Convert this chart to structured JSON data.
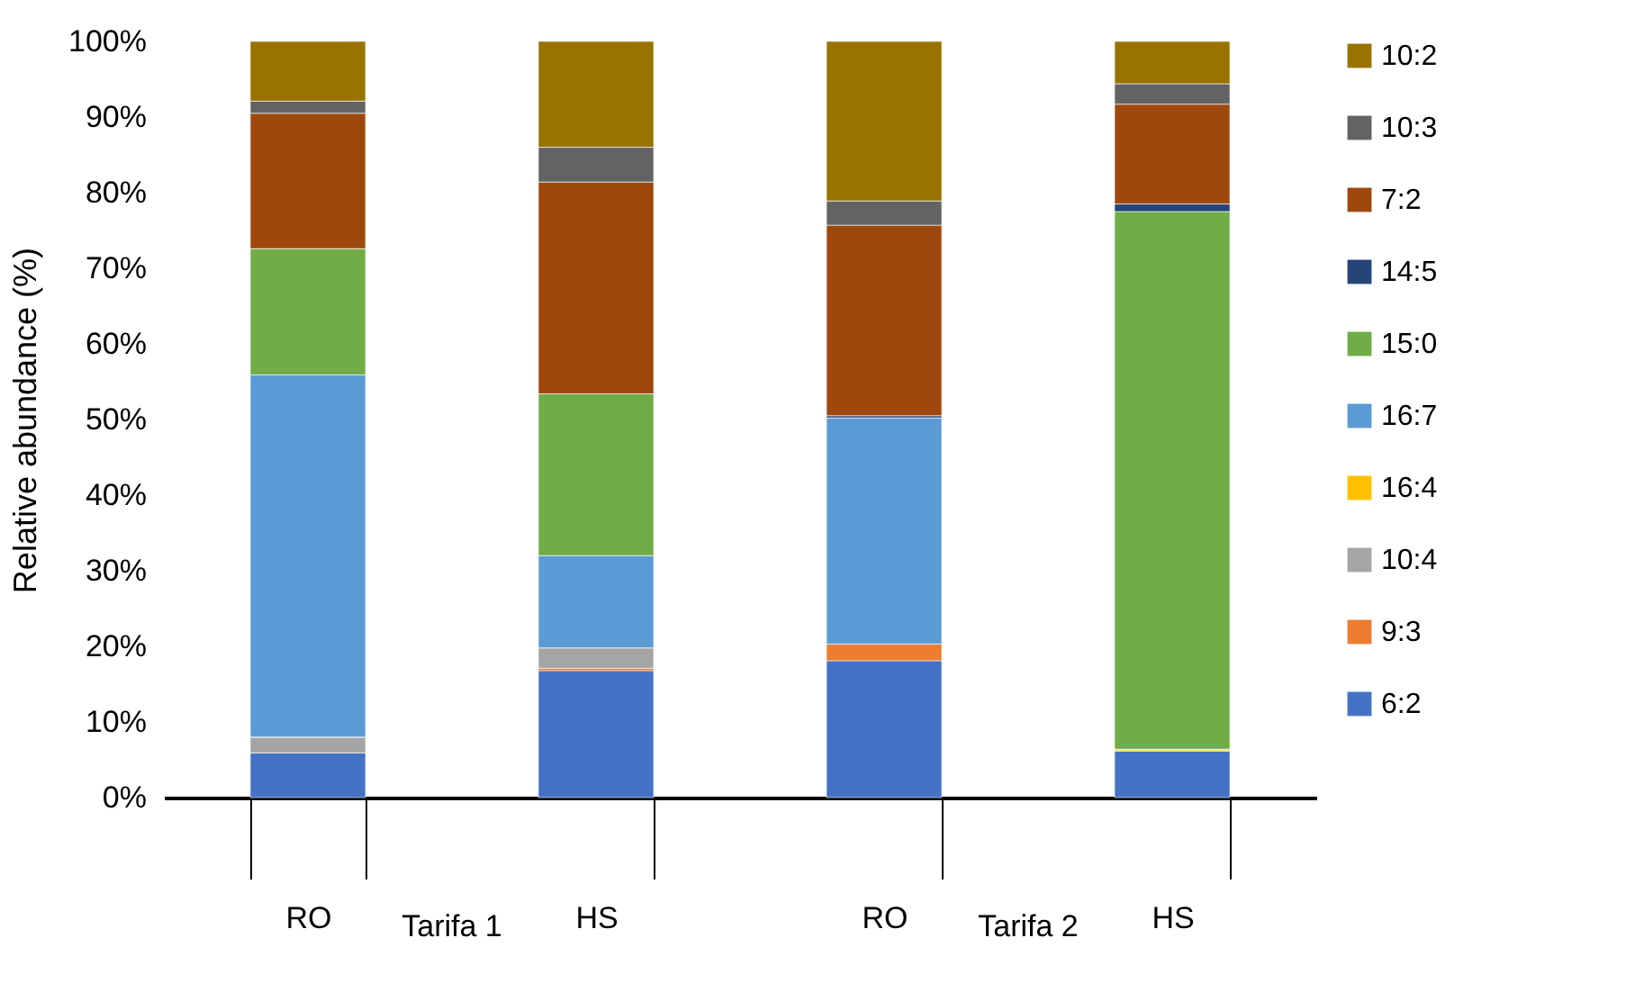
{
  "chart_data": {
    "type": "bar",
    "stacked": true,
    "ylabel": "Relative abundance (%)",
    "categories": [
      "RO",
      "HS",
      "RO",
      "HS"
    ],
    "annotations": [
      "Tarifa 1",
      "Tarifa 2"
    ],
    "series": [
      {
        "name": "6:2",
        "color": "#4472c4",
        "values": [
          5.9,
          16.8,
          18.1,
          6.2
        ]
      },
      {
        "name": "9:3",
        "color": "#ed7d31",
        "values": [
          0,
          0.3,
          2.2,
          0
        ]
      },
      {
        "name": "10:4",
        "color": "#a5a5a5",
        "values": [
          2.1,
          2.7,
          0,
          0
        ]
      },
      {
        "name": "16:4",
        "color": "#ffc000",
        "values": [
          0,
          0,
          0,
          0.2
        ]
      },
      {
        "name": "16:7",
        "color": "#5b9bd5",
        "values": [
          47.9,
          12.2,
          29.9,
          0
        ]
      },
      {
        "name": "15:0",
        "color": "#70ad47",
        "values": [
          16.7,
          21.4,
          0,
          71.1
        ]
      },
      {
        "name": "14:5",
        "color": "#264478",
        "values": [
          0,
          0,
          0.3,
          1.0
        ]
      },
      {
        "name": "7:2",
        "color": "#9e480e",
        "values": [
          17.9,
          28.0,
          25.2,
          13.2
        ]
      },
      {
        "name": "10:3",
        "color": "#636363",
        "values": [
          1.6,
          4.6,
          3.2,
          2.7
        ]
      },
      {
        "name": "10:2",
        "color": "#997300",
        "values": [
          7.9,
          14.0,
          21.1,
          5.6
        ]
      }
    ],
    "ylim": [
      0,
      100
    ],
    "yticks": [
      {
        "value": 0,
        "label": "0%"
      },
      {
        "value": 10,
        "label": "10%"
      },
      {
        "value": 20,
        "label": "20%"
      },
      {
        "value": 30,
        "label": "30%"
      },
      {
        "value": 40,
        "label": "40%"
      },
      {
        "value": 50,
        "label": "50%"
      },
      {
        "value": 60,
        "label": "60%"
      },
      {
        "value": 70,
        "label": "70%"
      },
      {
        "value": 80,
        "label": "80%"
      },
      {
        "value": 90,
        "label": "90%"
      },
      {
        "value": 100,
        "label": "100%"
      }
    ],
    "grid": false,
    "legend": "right"
  }
}
